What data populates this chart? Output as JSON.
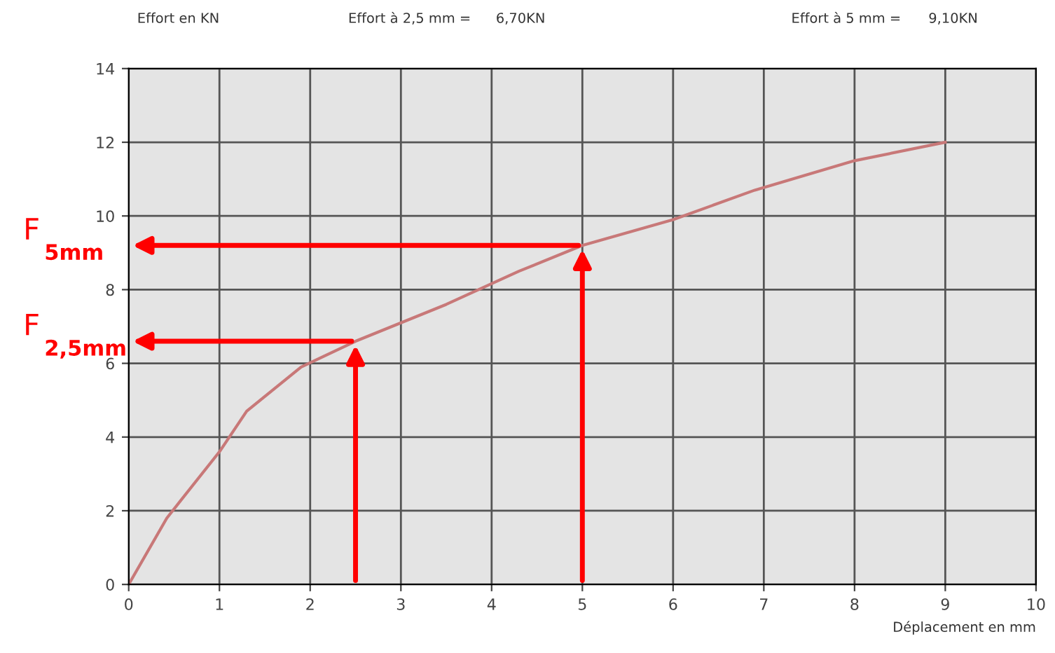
{
  "chart_data": {
    "type": "line",
    "xlabel": "Déplacement en mm",
    "ylabel": "Effort en KN",
    "x": [
      0,
      0.42,
      1.0,
      1.3,
      1.9,
      2.5,
      3.5,
      4.3,
      5,
      6,
      6.9,
      8,
      9
    ],
    "series": [
      {
        "color": "#c87878",
        "values": [
          0,
          1.8,
          3.6,
          4.7,
          5.9,
          6.6,
          7.6,
          8.5,
          9.2,
          9.9,
          10.7,
          11.5,
          12.0
        ]
      }
    ],
    "xlim": [
      0,
      10
    ],
    "ylim": [
      0,
      14
    ],
    "xticks": [
      0,
      1,
      2,
      3,
      4,
      5,
      6,
      7,
      8,
      9,
      10
    ],
    "yticks": [
      0,
      2,
      4,
      6,
      8,
      10,
      12,
      14
    ],
    "grid": true,
    "marker": "none",
    "line_style": "solid",
    "annotations": [
      "Effort à 2,5 mm =",
      "6,70KN",
      "Effort à 5 mm =",
      "9,10KN",
      {
        "text": "F$_{2,5mm}$",
        "x": 2.5,
        "y": 6.6
      },
      {
        "text": "F$_{5mm}$",
        "x": 5,
        "y": 9.2
      }
    ]
  }
}
